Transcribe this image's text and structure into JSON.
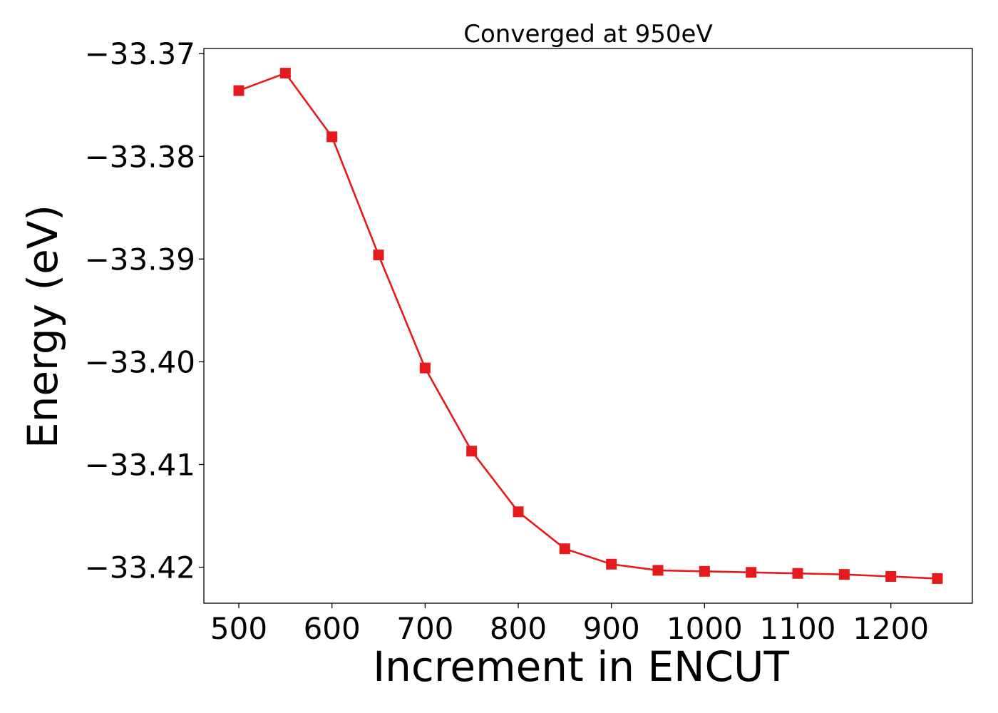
{
  "chart_data": {
    "type": "line",
    "title": "Converged at 950eV",
    "xlabel": "Increment in ENCUT",
    "ylabel": "Energy (eV)",
    "xlim": [
      462.5,
      1287.5
    ],
    "ylim": [
      -33.4235,
      -33.3695
    ],
    "x_ticks": [
      500,
      600,
      700,
      800,
      900,
      1000,
      1100,
      1200
    ],
    "x_tick_labels": [
      "500",
      "600",
      "700",
      "800",
      "900",
      "1000",
      "1100",
      "1200"
    ],
    "y_ticks": [
      -33.37,
      -33.38,
      -33.39,
      -33.4,
      -33.41,
      -33.42
    ],
    "y_tick_labels": [
      "−33.37",
      "−33.38",
      "−33.39",
      "−33.40",
      "−33.41",
      "−33.42"
    ],
    "grid": false,
    "legend": "none",
    "series": [
      {
        "color": "#e41a1c",
        "marker": "square",
        "x": [
          500,
          550,
          600,
          650,
          700,
          750,
          800,
          850,
          900,
          950,
          1000,
          1050,
          1100,
          1150,
          1200,
          1250
        ],
        "y": [
          -33.3736,
          -33.3719,
          -33.3781,
          -33.3896,
          -33.4006,
          -33.4087,
          -33.4146,
          -33.4182,
          -33.4197,
          -33.4203,
          -33.4204,
          -33.4205,
          -33.4206,
          -33.4207,
          -33.4209,
          -33.4211
        ]
      }
    ]
  }
}
